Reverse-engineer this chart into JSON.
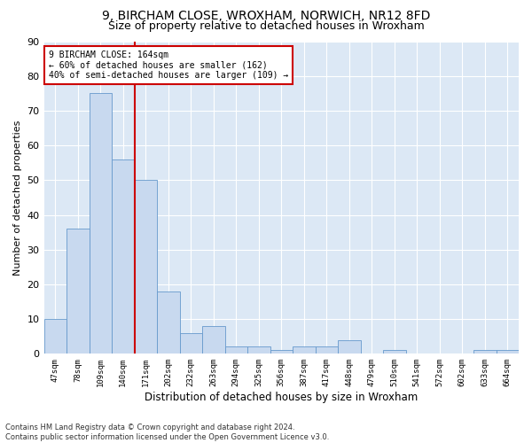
{
  "title1": "9, BIRCHAM CLOSE, WROXHAM, NORWICH, NR12 8FD",
  "title2": "Size of property relative to detached houses in Wroxham",
  "xlabel": "Distribution of detached houses by size in Wroxham",
  "ylabel": "Number of detached properties",
  "categories": [
    "47sqm",
    "78sqm",
    "109sqm",
    "140sqm",
    "171sqm",
    "202sqm",
    "232sqm",
    "263sqm",
    "294sqm",
    "325sqm",
    "356sqm",
    "387sqm",
    "417sqm",
    "448sqm",
    "479sqm",
    "510sqm",
    "541sqm",
    "572sqm",
    "602sqm",
    "633sqm",
    "664sqm"
  ],
  "values": [
    10,
    36,
    75,
    56,
    50,
    18,
    6,
    8,
    2,
    2,
    1,
    2,
    2,
    4,
    0,
    1,
    0,
    0,
    0,
    1,
    1
  ],
  "bar_color": "#c8d9ef",
  "bar_edge_color": "#6699cc",
  "vline_color": "#cc0000",
  "annotation_line1": "9 BIRCHAM CLOSE: 164sqm",
  "annotation_line2": "← 60% of detached houses are smaller (162)",
  "annotation_line3": "40% of semi-detached houses are larger (109) →",
  "annotation_box_color": "#ffffff",
  "annotation_box_edge": "#cc0000",
  "ylim": [
    0,
    90
  ],
  "yticks": [
    0,
    10,
    20,
    30,
    40,
    50,
    60,
    70,
    80,
    90
  ],
  "footer": "Contains HM Land Registry data © Crown copyright and database right 2024.\nContains public sector information licensed under the Open Government Licence v3.0.",
  "plot_background": "#dce8f5",
  "title1_fontsize": 10,
  "title2_fontsize": 9
}
